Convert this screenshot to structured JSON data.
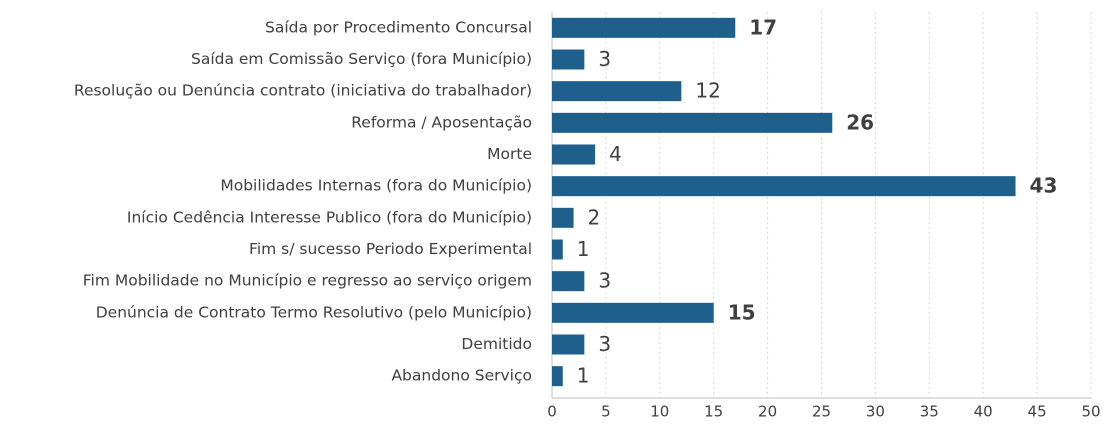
{
  "chart_data": {
    "type": "barh",
    "categories": [
      "Saída por Procedimento Concursal",
      "Saída em Comissão Serviço (fora Município)",
      "Resolução ou Denúncia contrato (iniciativa do trabalhador)",
      "Reforma / Aposentação",
      "Morte",
      "Mobilidades Internas (fora do Município)",
      "Início Cedência Interesse Publico (fora do Município)",
      "Fim s/ sucesso Periodo Experimental",
      "Fim Mobilidade no Município e regresso ao serviço origem",
      "Denúncia de Contrato Termo Resolutivo (pelo Município)",
      "Demitido",
      "Abandono Serviço"
    ],
    "values": [
      17,
      3,
      12,
      26,
      4,
      43,
      2,
      1,
      3,
      15,
      3,
      1
    ],
    "color": "#1f5f8b",
    "label_colors": [
      "#1f5f8b",
      "#595959",
      "#595959",
      "#1f5f8b",
      "#595959",
      "#1f5f8b",
      "#595959",
      "#595959",
      "#595959",
      "#1f5f8b",
      "#595959",
      "#595959"
    ],
    "xlim": [
      0,
      50
    ],
    "xticks": [
      0,
      5,
      10,
      15,
      20,
      25,
      30,
      35,
      40,
      45,
      50
    ],
    "grid": true
  }
}
